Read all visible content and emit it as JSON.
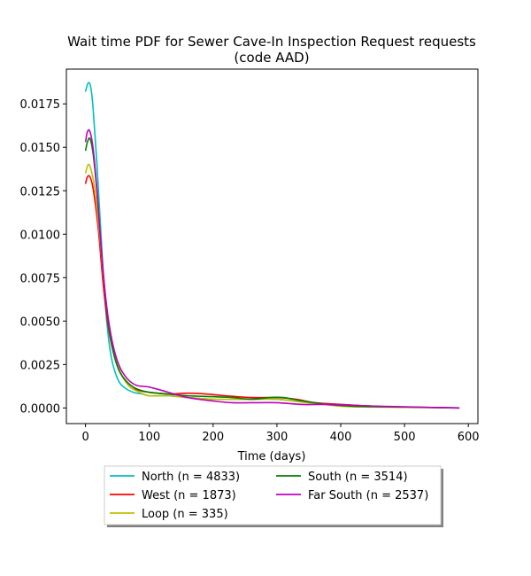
{
  "chart_data": {
    "type": "line",
    "title_lines": [
      "Wait time PDF for Sewer Cave-In Inspection Request  requests",
      "(code AAD)"
    ],
    "xlabel": "Time (days)",
    "ylabel": "",
    "xlim": [
      -30,
      615
    ],
    "ylim": [
      -0.0009,
      0.0195
    ],
    "xticks": [
      0,
      100,
      200,
      300,
      400,
      500,
      600
    ],
    "xtick_labels": [
      "0",
      "100",
      "200",
      "300",
      "400",
      "500",
      "600"
    ],
    "yticks": [
      0.0,
      0.0025,
      0.005,
      0.0075,
      0.01,
      0.0125,
      0.015,
      0.0175
    ],
    "ytick_labels": [
      "0.0000",
      "0.0025",
      "0.0050",
      "0.0075",
      "0.0100",
      "0.0125",
      "0.0150",
      "0.0175"
    ],
    "grid": false,
    "legend_placement": "below plot, two columns",
    "series": [
      {
        "name": "North (n = 4833)",
        "color": "#00bfbf",
        "points": [
          [
            0,
            0.0182
          ],
          [
            4,
            0.0187
          ],
          [
            8,
            0.0185
          ],
          [
            12,
            0.0172
          ],
          [
            18,
            0.014
          ],
          [
            25,
            0.0095
          ],
          [
            32,
            0.0055
          ],
          [
            40,
            0.003
          ],
          [
            50,
            0.0017
          ],
          [
            60,
            0.0012
          ],
          [
            75,
            0.0009
          ],
          [
            90,
            0.0008
          ],
          [
            100,
            0.0007
          ],
          [
            130,
            0.0007
          ],
          [
            160,
            0.0006
          ],
          [
            200,
            0.0005
          ],
          [
            250,
            0.0005
          ],
          [
            300,
            0.0005
          ],
          [
            350,
            0.0003
          ],
          [
            400,
            0.0002
          ],
          [
            450,
            0.0001
          ],
          [
            500,
            5e-05
          ],
          [
            586,
            0.0
          ]
        ]
      },
      {
        "name": "West (n = 1873)",
        "color": "#ff0000",
        "points": [
          [
            0,
            0.0129
          ],
          [
            3,
            0.0133
          ],
          [
            7,
            0.0133
          ],
          [
            12,
            0.0126
          ],
          [
            20,
            0.0103
          ],
          [
            28,
            0.007
          ],
          [
            36,
            0.0046
          ],
          [
            45,
            0.003
          ],
          [
            55,
            0.002
          ],
          [
            70,
            0.0012
          ],
          [
            85,
            0.001
          ],
          [
            100,
            0.0009
          ],
          [
            130,
            0.0008
          ],
          [
            160,
            0.00085
          ],
          [
            190,
            0.0008
          ],
          [
            220,
            0.0007
          ],
          [
            260,
            0.0006
          ],
          [
            300,
            0.0006
          ],
          [
            330,
            0.0005
          ],
          [
            360,
            0.0003
          ],
          [
            400,
            0.0002
          ],
          [
            450,
            0.0001
          ],
          [
            500,
            5e-05
          ],
          [
            586,
            0.0
          ]
        ]
      },
      {
        "name": "Loop (n = 335)",
        "color": "#bfbf00",
        "points": [
          [
            0,
            0.0135
          ],
          [
            4,
            0.014
          ],
          [
            8,
            0.0138
          ],
          [
            14,
            0.0127
          ],
          [
            22,
            0.01
          ],
          [
            30,
            0.0068
          ],
          [
            38,
            0.0045
          ],
          [
            48,
            0.0028
          ],
          [
            58,
            0.0018
          ],
          [
            70,
            0.0012
          ],
          [
            85,
            0.0009
          ],
          [
            100,
            0.0007
          ],
          [
            130,
            0.0007
          ],
          [
            160,
            0.0006
          ],
          [
            200,
            0.0005
          ],
          [
            250,
            0.0005
          ],
          [
            300,
            0.0005
          ],
          [
            350,
            0.0003
          ],
          [
            400,
            0.0001
          ],
          [
            450,
            5e-05
          ],
          [
            586,
            0.0
          ]
        ]
      },
      {
        "name": "South (n = 3514)",
        "color": "#008000",
        "points": [
          [
            0,
            0.0148
          ],
          [
            3,
            0.0153
          ],
          [
            7,
            0.0155
          ],
          [
            12,
            0.0146
          ],
          [
            18,
            0.0124
          ],
          [
            25,
            0.009
          ],
          [
            33,
            0.0057
          ],
          [
            42,
            0.0035
          ],
          [
            52,
            0.0022
          ],
          [
            65,
            0.0015
          ],
          [
            80,
            0.0011
          ],
          [
            100,
            0.0009
          ],
          [
            130,
            0.0008
          ],
          [
            160,
            0.0007
          ],
          [
            200,
            0.00065
          ],
          [
            230,
            0.0006
          ],
          [
            260,
            0.0005
          ],
          [
            290,
            0.0006
          ],
          [
            310,
            0.0006
          ],
          [
            340,
            0.0004
          ],
          [
            380,
            0.0002
          ],
          [
            420,
            0.0001
          ],
          [
            500,
            5e-05
          ],
          [
            586,
            0.0
          ]
        ]
      },
      {
        "name": "Far South (n = 2537)",
        "color": "#bf00bf",
        "points": [
          [
            0,
            0.0153
          ],
          [
            3,
            0.0159
          ],
          [
            7,
            0.0159
          ],
          [
            12,
            0.0149
          ],
          [
            18,
            0.0125
          ],
          [
            25,
            0.009
          ],
          [
            33,
            0.0059
          ],
          [
            42,
            0.0038
          ],
          [
            52,
            0.0025
          ],
          [
            65,
            0.0017
          ],
          [
            80,
            0.0013
          ],
          [
            100,
            0.0012
          ],
          [
            130,
            0.0009
          ],
          [
            160,
            0.0006
          ],
          [
            200,
            0.0004
          ],
          [
            230,
            0.0003
          ],
          [
            260,
            0.0003
          ],
          [
            300,
            0.0003
          ],
          [
            340,
            0.0002
          ],
          [
            380,
            0.0002
          ],
          [
            420,
            0.00015
          ],
          [
            460,
            0.0001
          ],
          [
            520,
            5e-05
          ],
          [
            586,
            0.0
          ]
        ]
      }
    ]
  }
}
